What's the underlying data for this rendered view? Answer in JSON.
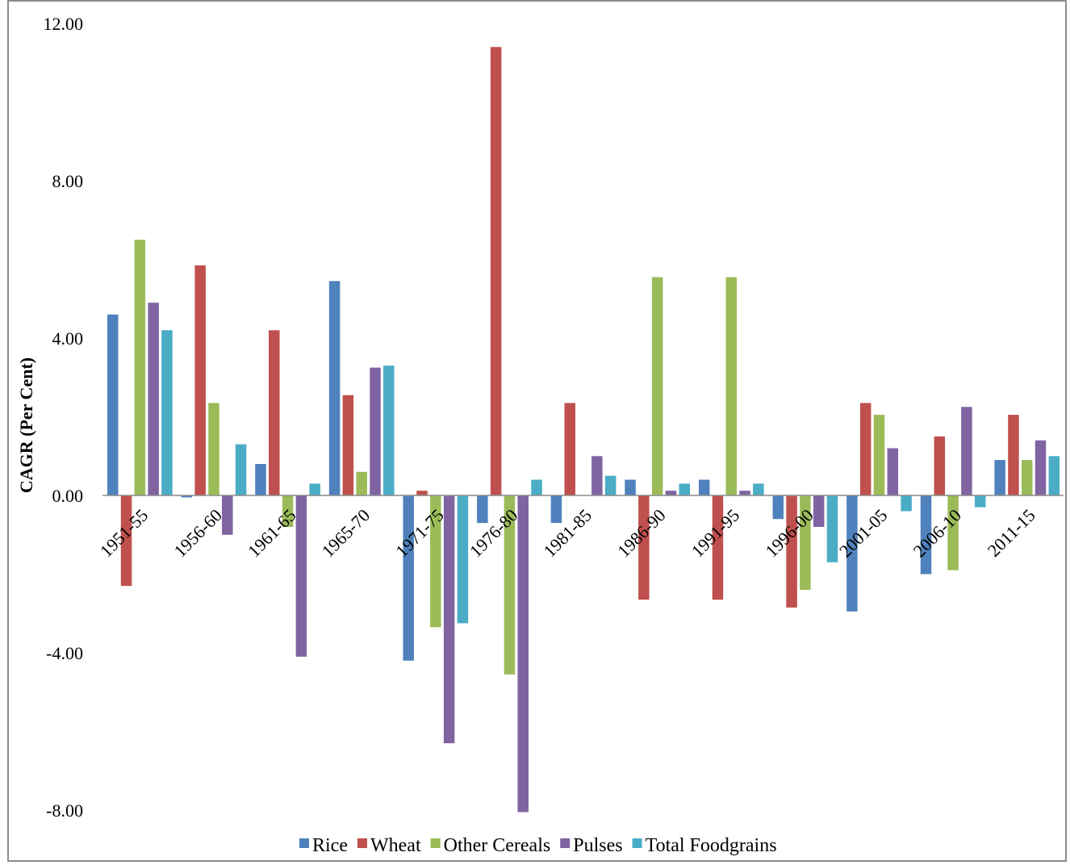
{
  "chart_data": {
    "type": "bar",
    "title": "",
    "xlabel": "",
    "ylabel": "CAGR (Per Cent)",
    "ylim": [
      -8,
      12
    ],
    "yticks": [
      -8,
      -4,
      0,
      4,
      8,
      12
    ],
    "ytick_labels": [
      "-8.00",
      "-4.00",
      "0.00",
      "4.00",
      "8.00",
      "12.00"
    ],
    "grid": false,
    "legend_position": "bottom",
    "categories": [
      "1951-55",
      "1956-60",
      "1961-65",
      "1965-70",
      "1971-75",
      "1976-80",
      "1981-85",
      "1986-90",
      "1991-95",
      "1996-00",
      "2001-05",
      "2006-10",
      "2011-15"
    ],
    "series": [
      {
        "name": "Rice",
        "color": "#4f81bd",
        "values": [
          4.6,
          -0.05,
          0.8,
          5.45,
          -4.2,
          -0.7,
          -0.7,
          0.4,
          0.4,
          -0.6,
          -2.95,
          -2.0,
          0.9
        ]
      },
      {
        "name": "Wheat",
        "color": "#c0504d",
        "values": [
          -2.3,
          5.85,
          4.2,
          2.55,
          0.12,
          11.4,
          2.35,
          -2.65,
          -2.65,
          -2.85,
          2.35,
          1.5,
          2.05
        ]
      },
      {
        "name": "Other Cereals",
        "color": "#9bbb59",
        "values": [
          6.5,
          2.35,
          -0.8,
          0.6,
          -3.35,
          -4.55,
          0.0,
          5.55,
          5.55,
          -2.4,
          2.05,
          -1.9,
          0.9
        ]
      },
      {
        "name": "Pulses",
        "color": "#8064a2",
        "values": [
          4.9,
          -1.0,
          -4.1,
          3.25,
          -6.3,
          -8.05,
          1.0,
          0.12,
          0.12,
          -0.8,
          1.2,
          2.25,
          1.4
        ]
      },
      {
        "name": "Total Foodgrains",
        "color": "#4bacc6",
        "values": [
          4.2,
          1.3,
          0.3,
          3.3,
          -3.25,
          0.4,
          0.5,
          0.3,
          0.3,
          -1.7,
          -0.4,
          -0.3,
          1.0
        ]
      }
    ]
  }
}
